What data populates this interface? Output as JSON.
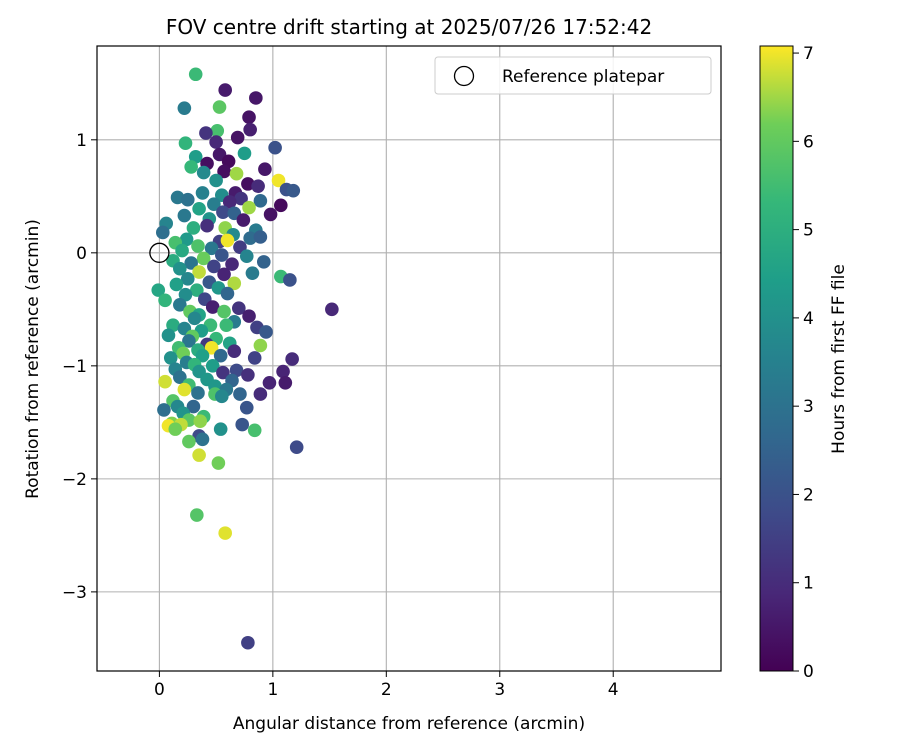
{
  "chart_data": {
    "type": "scatter",
    "title": "FOV centre drift starting at 2025/07/26 17:52:42",
    "xlabel": "Angular distance from reference (arcmin)",
    "ylabel": "Rotation from reference (arcmin)",
    "xlim": [
      -0.55,
      4.95
    ],
    "ylim": [
      -3.7,
      1.83
    ],
    "xticks": [
      0,
      1,
      2,
      3,
      4
    ],
    "yticks": [
      -3,
      -2,
      -1,
      0,
      1
    ],
    "grid": true,
    "legend": {
      "placement": "top-right",
      "entries": [
        "Reference platepar"
      ]
    },
    "colorbar": {
      "label": "Hours from first FF file",
      "colormap": "viridis",
      "range": [
        0,
        7.08
      ],
      "ticks": [
        0,
        1,
        2,
        3,
        4,
        5,
        6,
        7
      ]
    },
    "reference_point": {
      "x": 0,
      "y": 0
    },
    "points": [
      {
        "x": 0.32,
        "y": 1.58,
        "c": 5.4
      },
      {
        "x": 0.58,
        "y": 1.44,
        "c": 0.6
      },
      {
        "x": 0.85,
        "y": 1.37,
        "c": 0.5
      },
      {
        "x": 0.53,
        "y": 1.29,
        "c": 5.9
      },
      {
        "x": 0.22,
        "y": 1.28,
        "c": 3.3
      },
      {
        "x": 0.79,
        "y": 1.2,
        "c": 0.4
      },
      {
        "x": 0.8,
        "y": 1.09,
        "c": 0.7
      },
      {
        "x": 0.51,
        "y": 1.08,
        "c": 5.6
      },
      {
        "x": 0.41,
        "y": 1.06,
        "c": 1.2
      },
      {
        "x": 0.69,
        "y": 1.02,
        "c": 0.4
      },
      {
        "x": 0.23,
        "y": 0.97,
        "c": 5.2
      },
      {
        "x": 0.5,
        "y": 0.98,
        "c": 0.9
      },
      {
        "x": 1.02,
        "y": 0.93,
        "c": 2.0
      },
      {
        "x": 0.75,
        "y": 0.88,
        "c": 4.4
      },
      {
        "x": 0.53,
        "y": 0.87,
        "c": 0.5
      },
      {
        "x": 0.32,
        "y": 0.85,
        "c": 4.4
      },
      {
        "x": 0.61,
        "y": 0.81,
        "c": 0.2
      },
      {
        "x": 0.42,
        "y": 0.79,
        "c": 0.3
      },
      {
        "x": 0.28,
        "y": 0.76,
        "c": 5.3
      },
      {
        "x": 0.57,
        "y": 0.72,
        "c": 0.3
      },
      {
        "x": 0.39,
        "y": 0.71,
        "c": 3.8
      },
      {
        "x": 0.68,
        "y": 0.7,
        "c": 6.5
      },
      {
        "x": 0.93,
        "y": 0.74,
        "c": 0.5
      },
      {
        "x": 1.05,
        "y": 0.64,
        "c": 7.0
      },
      {
        "x": 0.5,
        "y": 0.64,
        "c": 4.0
      },
      {
        "x": 0.78,
        "y": 0.61,
        "c": 0.3
      },
      {
        "x": 0.87,
        "y": 0.59,
        "c": 1.0
      },
      {
        "x": 0.67,
        "y": 0.53,
        "c": 0.6
      },
      {
        "x": 1.12,
        "y": 0.56,
        "c": 2.0
      },
      {
        "x": 1.18,
        "y": 0.55,
        "c": 2.2
      },
      {
        "x": 0.38,
        "y": 0.53,
        "c": 3.5
      },
      {
        "x": 0.55,
        "y": 0.51,
        "c": 3.9
      },
      {
        "x": 0.72,
        "y": 0.48,
        "c": 1.2
      },
      {
        "x": 0.89,
        "y": 0.46,
        "c": 2.7
      },
      {
        "x": 0.16,
        "y": 0.49,
        "c": 3.2
      },
      {
        "x": 0.25,
        "y": 0.47,
        "c": 3.0
      },
      {
        "x": 0.48,
        "y": 0.43,
        "c": 3.4
      },
      {
        "x": 0.62,
        "y": 0.45,
        "c": 0.9
      },
      {
        "x": 0.79,
        "y": 0.4,
        "c": 6.5
      },
      {
        "x": 1.07,
        "y": 0.42,
        "c": 0.2
      },
      {
        "x": 0.35,
        "y": 0.39,
        "c": 4.6
      },
      {
        "x": 0.56,
        "y": 0.36,
        "c": 1.8
      },
      {
        "x": 0.66,
        "y": 0.35,
        "c": 2.5
      },
      {
        "x": 0.98,
        "y": 0.34,
        "c": 0.4
      },
      {
        "x": 0.22,
        "y": 0.33,
        "c": 3.2
      },
      {
        "x": 0.44,
        "y": 0.3,
        "c": 4.1
      },
      {
        "x": 0.74,
        "y": 0.29,
        "c": 0.6
      },
      {
        "x": 0.06,
        "y": 0.26,
        "c": 3.6
      },
      {
        "x": 0.42,
        "y": 0.24,
        "c": 1.1
      },
      {
        "x": 0.58,
        "y": 0.22,
        "c": 6.4
      },
      {
        "x": 0.85,
        "y": 0.2,
        "c": 3.3
      },
      {
        "x": 0.3,
        "y": 0.22,
        "c": 5.0
      },
      {
        "x": 0.03,
        "y": 0.18,
        "c": 2.9
      },
      {
        "x": 0.65,
        "y": 0.16,
        "c": 3.8
      },
      {
        "x": 0.8,
        "y": 0.13,
        "c": 2.8
      },
      {
        "x": 0.24,
        "y": 0.12,
        "c": 4.3
      },
      {
        "x": 0.53,
        "y": 0.1,
        "c": 1.5
      },
      {
        "x": 0.6,
        "y": 0.11,
        "c": 7.0
      },
      {
        "x": 0.14,
        "y": 0.09,
        "c": 5.6
      },
      {
        "x": 0.89,
        "y": 0.14,
        "c": 2.4
      },
      {
        "x": 0.34,
        "y": 0.06,
        "c": 5.7
      },
      {
        "x": 0.46,
        "y": 0.04,
        "c": 3.2
      },
      {
        "x": 0.71,
        "y": 0.05,
        "c": 1.4
      },
      {
        "x": 0.2,
        "y": 0.02,
        "c": 4.8
      },
      {
        "x": 0.55,
        "y": -0.02,
        "c": 2.1
      },
      {
        "x": 0.77,
        "y": -0.03,
        "c": 3.6
      },
      {
        "x": 0.39,
        "y": -0.05,
        "c": 6.1
      },
      {
        "x": 0.12,
        "y": -0.07,
        "c": 4.9
      },
      {
        "x": 0.28,
        "y": -0.09,
        "c": 3.1
      },
      {
        "x": 0.64,
        "y": -0.1,
        "c": 0.9
      },
      {
        "x": 0.92,
        "y": -0.08,
        "c": 2.5
      },
      {
        "x": 0.48,
        "y": -0.12,
        "c": 1.6
      },
      {
        "x": 0.18,
        "y": -0.14,
        "c": 4.0
      },
      {
        "x": 0.35,
        "y": -0.17,
        "c": 6.7
      },
      {
        "x": 0.57,
        "y": -0.19,
        "c": 0.8
      },
      {
        "x": 0.82,
        "y": -0.18,
        "c": 3.3
      },
      {
        "x": 1.07,
        "y": -0.21,
        "c": 5.4
      },
      {
        "x": 1.15,
        "y": -0.24,
        "c": 2.0
      },
      {
        "x": 0.25,
        "y": -0.23,
        "c": 3.7
      },
      {
        "x": 0.44,
        "y": -0.26,
        "c": 2.2
      },
      {
        "x": 0.66,
        "y": -0.27,
        "c": 6.6
      },
      {
        "x": 0.15,
        "y": -0.28,
        "c": 4.5
      },
      {
        "x": 0.52,
        "y": -0.31,
        "c": 4.2
      },
      {
        "x": -0.01,
        "y": -0.33,
        "c": 4.7
      },
      {
        "x": 0.33,
        "y": -0.33,
        "c": 5.0
      },
      {
        "x": 0.6,
        "y": -0.36,
        "c": 2.6
      },
      {
        "x": 0.23,
        "y": -0.37,
        "c": 3.9
      },
      {
        "x": 0.4,
        "y": -0.41,
        "c": 1.7
      },
      {
        "x": 0.05,
        "y": -0.42,
        "c": 5.2
      },
      {
        "x": 0.18,
        "y": -0.46,
        "c": 3.2
      },
      {
        "x": 0.47,
        "y": -0.48,
        "c": 0.7
      },
      {
        "x": 0.7,
        "y": -0.49,
        "c": 1.2
      },
      {
        "x": 1.52,
        "y": -0.5,
        "c": 0.9
      },
      {
        "x": 0.27,
        "y": -0.52,
        "c": 6.0
      },
      {
        "x": 0.57,
        "y": -0.52,
        "c": 5.8
      },
      {
        "x": 0.35,
        "y": -0.55,
        "c": 4.6
      },
      {
        "x": 0.79,
        "y": -0.56,
        "c": 0.7
      },
      {
        "x": 0.31,
        "y": -0.58,
        "c": 3.7
      },
      {
        "x": 0.66,
        "y": -0.61,
        "c": 3.3
      },
      {
        "x": 0.12,
        "y": -0.64,
        "c": 4.9
      },
      {
        "x": 0.45,
        "y": -0.64,
        "c": 5.4
      },
      {
        "x": 0.59,
        "y": -0.64,
        "c": 5.4
      },
      {
        "x": 0.86,
        "y": -0.66,
        "c": 1.5
      },
      {
        "x": 0.22,
        "y": -0.67,
        "c": 3.6
      },
      {
        "x": 0.37,
        "y": -0.69,
        "c": 4.4
      },
      {
        "x": 0.94,
        "y": -0.7,
        "c": 2.2
      },
      {
        "x": 0.08,
        "y": -0.73,
        "c": 4.0
      },
      {
        "x": 0.29,
        "y": -0.74,
        "c": 6.0
      },
      {
        "x": 0.5,
        "y": -0.76,
        "c": 5.3
      },
      {
        "x": 0.26,
        "y": -0.78,
        "c": 3.1
      },
      {
        "x": 0.42,
        "y": -0.81,
        "c": 1.3
      },
      {
        "x": 0.62,
        "y": -0.8,
        "c": 4.6
      },
      {
        "x": 0.89,
        "y": -0.82,
        "c": 6.4
      },
      {
        "x": 0.17,
        "y": -0.84,
        "c": 5.5
      },
      {
        "x": 0.34,
        "y": -0.86,
        "c": 4.9
      },
      {
        "x": 0.46,
        "y": -0.84,
        "c": 7.0
      },
      {
        "x": 0.66,
        "y": -0.87,
        "c": 1.0
      },
      {
        "x": 0.21,
        "y": -0.89,
        "c": 6.2
      },
      {
        "x": 0.38,
        "y": -0.91,
        "c": 4.5
      },
      {
        "x": 0.54,
        "y": -0.91,
        "c": 2.7
      },
      {
        "x": 1.17,
        "y": -0.94,
        "c": 1.0
      },
      {
        "x": 0.1,
        "y": -0.93,
        "c": 4.0
      },
      {
        "x": 0.84,
        "y": -0.93,
        "c": 1.6
      },
      {
        "x": 0.24,
        "y": -0.97,
        "c": 3.4
      },
      {
        "x": 0.31,
        "y": -0.99,
        "c": 5.2
      },
      {
        "x": 0.47,
        "y": -1.0,
        "c": 4.4
      },
      {
        "x": 0.14,
        "y": -1.03,
        "c": 3.6
      },
      {
        "x": 0.68,
        "y": -1.04,
        "c": 1.8
      },
      {
        "x": 0.35,
        "y": -1.05,
        "c": 4.1
      },
      {
        "x": 0.56,
        "y": -1.06,
        "c": 1.2
      },
      {
        "x": 1.09,
        "y": -1.05,
        "c": 0.8
      },
      {
        "x": 0.78,
        "y": -1.08,
        "c": 1.1
      },
      {
        "x": 0.18,
        "y": -1.1,
        "c": 3.0
      },
      {
        "x": 0.42,
        "y": -1.12,
        "c": 4.2
      },
      {
        "x": 0.05,
        "y": -1.14,
        "c": 6.8
      },
      {
        "x": 0.64,
        "y": -1.13,
        "c": 2.6
      },
      {
        "x": 0.97,
        "y": -1.15,
        "c": 0.8
      },
      {
        "x": 1.11,
        "y": -1.15,
        "c": 0.6
      },
      {
        "x": 0.26,
        "y": -1.17,
        "c": 5.5
      },
      {
        "x": 0.49,
        "y": -1.18,
        "c": 4.2
      },
      {
        "x": 0.22,
        "y": -1.21,
        "c": 6.9
      },
      {
        "x": 0.59,
        "y": -1.21,
        "c": 3.2
      },
      {
        "x": 0.89,
        "y": -1.25,
        "c": 1.0
      },
      {
        "x": 0.34,
        "y": -1.24,
        "c": 3.0
      },
      {
        "x": 0.71,
        "y": -1.25,
        "c": 2.6
      },
      {
        "x": 0.49,
        "y": -1.25,
        "c": 5.7
      },
      {
        "x": 0.12,
        "y": -1.31,
        "c": 5.8
      },
      {
        "x": 0.55,
        "y": -1.27,
        "c": 3.7
      },
      {
        "x": 0.16,
        "y": -1.36,
        "c": 3.7
      },
      {
        "x": 0.3,
        "y": -1.36,
        "c": 2.6
      },
      {
        "x": 0.77,
        "y": -1.37,
        "c": 2.1
      },
      {
        "x": 0.04,
        "y": -1.39,
        "c": 2.9
      },
      {
        "x": 0.21,
        "y": -1.42,
        "c": 4.1
      },
      {
        "x": 0.39,
        "y": -1.45,
        "c": 5.4
      },
      {
        "x": 0.26,
        "y": -1.48,
        "c": 5.9
      },
      {
        "x": 0.11,
        "y": -1.51,
        "c": 6.3
      },
      {
        "x": 0.19,
        "y": -1.52,
        "c": 6.7
      },
      {
        "x": 0.08,
        "y": -1.53,
        "c": 7.0
      },
      {
        "x": 0.36,
        "y": -1.49,
        "c": 6.4
      },
      {
        "x": 0.73,
        "y": -1.52,
        "c": 2.1
      },
      {
        "x": 0.14,
        "y": -1.56,
        "c": 6.2
      },
      {
        "x": 0.54,
        "y": -1.56,
        "c": 4.0
      },
      {
        "x": 0.84,
        "y": -1.57,
        "c": 5.6
      },
      {
        "x": 0.35,
        "y": -1.62,
        "c": 1.8
      },
      {
        "x": 0.38,
        "y": -1.65,
        "c": 3.0
      },
      {
        "x": 0.26,
        "y": -1.67,
        "c": 6.0
      },
      {
        "x": 1.21,
        "y": -1.72,
        "c": 1.8
      },
      {
        "x": 0.35,
        "y": -1.79,
        "c": 6.8
      },
      {
        "x": 0.52,
        "y": -1.86,
        "c": 6.2
      },
      {
        "x": 0.33,
        "y": -2.32,
        "c": 5.8
      },
      {
        "x": 0.58,
        "y": -2.48,
        "c": 6.9
      },
      {
        "x": 0.78,
        "y": -3.45,
        "c": 1.5
      }
    ]
  }
}
